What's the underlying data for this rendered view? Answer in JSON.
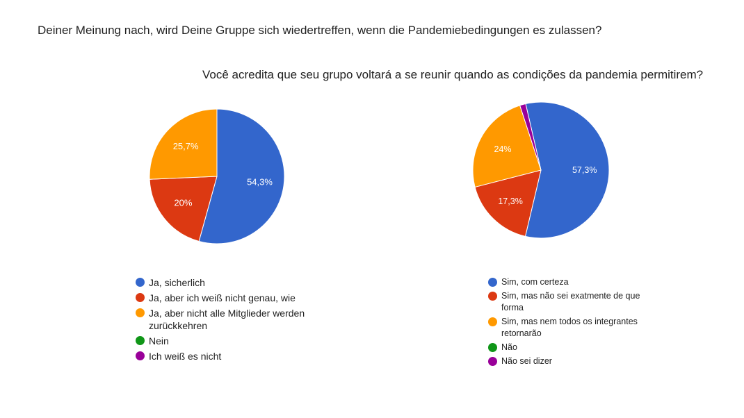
{
  "chart_data": [
    {
      "type": "pie",
      "title": "Deiner Meinung nach, wird Deine Gruppe sich wiedertreffen, wenn die Pandemiebedingungen es zulassen?",
      "legend_position": "bottom",
      "slices": [
        {
          "label": "Ja, sicherlich",
          "value": 54.3,
          "display": "54,3%",
          "color": "#3366cc"
        },
        {
          "label": "Ja, aber ich weiß nicht genau, wie",
          "value": 20.0,
          "display": "20%",
          "color": "#dc3912"
        },
        {
          "label": "Ja, aber nicht alle Mitglieder werden zurückkehren",
          "value": 25.7,
          "display": "25,7%",
          "color": "#ff9900"
        },
        {
          "label": "Nein",
          "value": 0,
          "display": "",
          "color": "#109618"
        },
        {
          "label": "Ich weiß es nicht",
          "value": 0,
          "display": "",
          "color": "#990099"
        }
      ]
    },
    {
      "type": "pie",
      "title": "Você acredita que seu grupo voltará a se reunir quando as condições da pandemia permitirem?",
      "legend_position": "bottom",
      "slices": [
        {
          "label": "Sim, com certeza",
          "value": 57.3,
          "display": "57,3%",
          "color": "#3366cc"
        },
        {
          "label": "Sim, mas não sei exatmente de que forma",
          "value": 17.3,
          "display": "17,3%",
          "color": "#dc3912"
        },
        {
          "label": "Sim, mas nem todos os integrantes retornarão",
          "value": 24.0,
          "display": "24%",
          "color": "#ff9900"
        },
        {
          "label": "Não",
          "value": 0,
          "display": "",
          "color": "#109618"
        },
        {
          "label": "Não sei dizer",
          "value": 1.4,
          "display": "",
          "color": "#990099"
        }
      ]
    }
  ]
}
